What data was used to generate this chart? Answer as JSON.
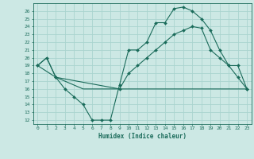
{
  "title": "",
  "xlabel": "Humidex (Indice chaleur)",
  "background_color": "#cce8e4",
  "grid_color": "#aad4cf",
  "line_color": "#1a6b5a",
  "xlim": [
    -0.5,
    23.5
  ],
  "ylim": [
    11.5,
    27.0
  ],
  "xticks": [
    0,
    1,
    2,
    3,
    4,
    5,
    6,
    7,
    8,
    9,
    10,
    11,
    12,
    13,
    14,
    15,
    16,
    17,
    18,
    19,
    20,
    21,
    22,
    23
  ],
  "yticks": [
    12,
    13,
    14,
    15,
    16,
    17,
    18,
    19,
    20,
    21,
    22,
    23,
    24,
    25,
    26
  ],
  "line1_x": [
    0,
    1,
    2,
    3,
    4,
    5,
    6,
    7,
    8,
    9,
    10,
    11,
    12,
    13,
    14,
    15,
    16,
    17,
    18,
    19,
    20,
    21,
    22,
    23
  ],
  "line1_y": [
    19,
    20,
    17.5,
    16,
    15,
    14,
    12,
    12,
    12,
    16.5,
    21,
    21,
    22,
    24.5,
    24.5,
    26.3,
    26.5,
    26,
    25,
    23.5,
    21,
    19,
    17.5,
    16
  ],
  "line2_x": [
    0,
    1,
    2,
    3,
    4,
    5,
    6,
    7,
    8,
    9,
    10,
    11,
    12,
    13,
    14,
    15,
    16,
    17,
    18,
    19,
    20,
    21,
    22,
    23
  ],
  "line2_y": [
    19,
    20,
    17.5,
    17,
    16.5,
    16,
    16,
    16,
    16,
    16,
    16,
    16,
    16,
    16,
    16,
    16,
    16,
    16,
    16,
    16,
    16,
    16,
    16,
    16
  ],
  "line3_x": [
    0,
    2,
    9,
    10,
    11,
    12,
    13,
    14,
    15,
    16,
    17,
    18,
    19,
    20,
    21,
    22,
    23
  ],
  "line3_y": [
    19,
    17.5,
    16,
    18,
    19,
    20,
    21,
    22,
    23,
    23.5,
    24,
    23.8,
    21,
    20,
    19,
    19,
    16
  ]
}
